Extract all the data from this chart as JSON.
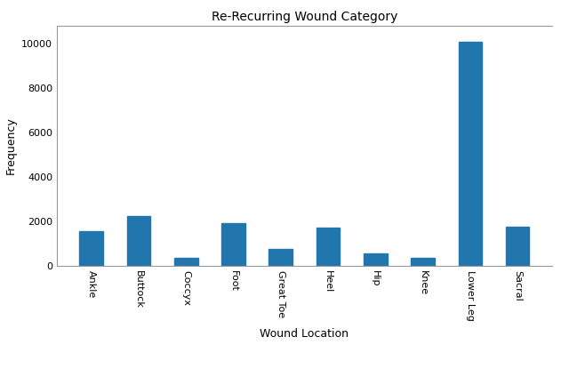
{
  "title": "Re-Recurring Wound Category",
  "xlabel": "Wound Location",
  "ylabel": "Frequency",
  "categories": [
    "Ankle",
    "Buttock",
    "Coccyx",
    "Foot",
    "Great Toe",
    "Heel",
    "Hip",
    "Knee",
    "Lower Leg",
    "Sacral"
  ],
  "values": [
    1550,
    2250,
    350,
    1900,
    750,
    1730,
    560,
    370,
    10100,
    1740
  ],
  "bar_color": "#2176ae",
  "ylim": [
    0,
    10800
  ],
  "yticks": [
    0,
    2000,
    4000,
    6000,
    8000,
    10000
  ],
  "background_color": "#ffffff",
  "title_fontsize": 10,
  "axis_label_fontsize": 9,
  "tick_fontsize": 8,
  "bar_width": 0.5
}
